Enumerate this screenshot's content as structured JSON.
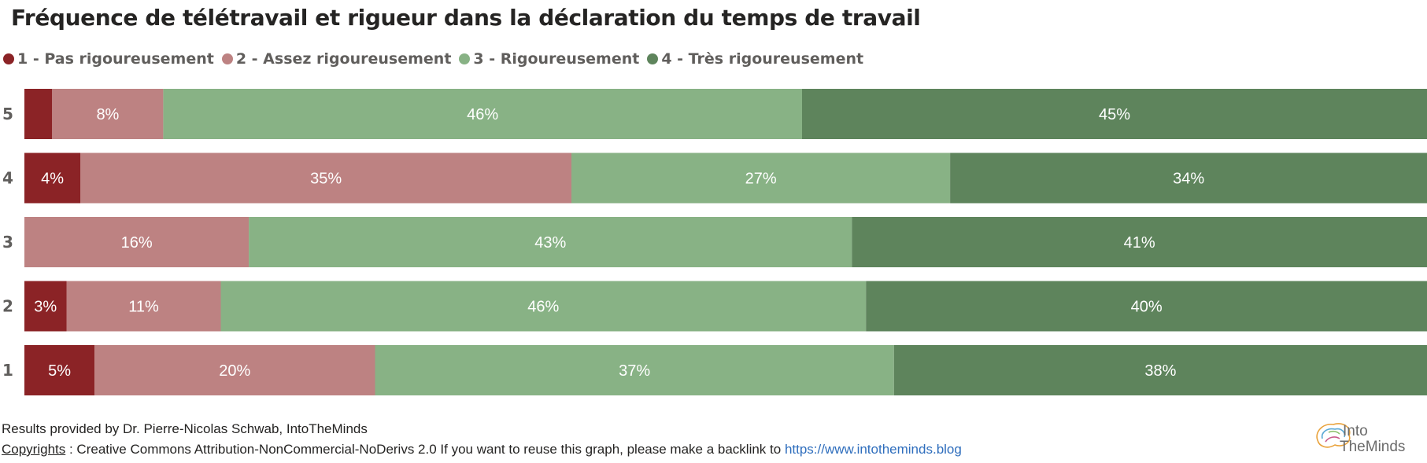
{
  "title": "Fréquence de télétravail et rigueur dans la déclaration du temps de travail",
  "legend": [
    {
      "label": "1 - Pas rigoureusement",
      "color": "#8b2326"
    },
    {
      "label": "2 - Assez rigoureusement",
      "color": "#bd8282"
    },
    {
      "label": "3 - Rigoureusement",
      "color": "#88b285"
    },
    {
      "label": "4 - Très rigoureusement",
      "color": "#5e845c"
    }
  ],
  "chart_data": {
    "type": "bar",
    "orientation": "horizontal",
    "stacked": true,
    "percent_stacked": true,
    "categories": [
      "5",
      "4",
      "3",
      "2",
      "1"
    ],
    "series": [
      {
        "name": "1 - Pas rigoureusement",
        "color": "#8b2326",
        "values": [
          2,
          4,
          0,
          3,
          5
        ]
      },
      {
        "name": "2 - Assez rigoureusement",
        "color": "#bd8282",
        "values": [
          8,
          35,
          16,
          11,
          20
        ]
      },
      {
        "name": "3 - Rigoureusement",
        "color": "#88b285",
        "values": [
          46,
          27,
          43,
          46,
          37
        ]
      },
      {
        "name": "4 - Très rigoureusement",
        "color": "#5e845c",
        "values": [
          45,
          34,
          41,
          40,
          38
        ]
      }
    ],
    "data_labels": [
      [
        "",
        "8%",
        "46%",
        "45%"
      ],
      [
        "4%",
        "35%",
        "27%",
        "34%"
      ],
      [
        "",
        "16%",
        "43%",
        "41%"
      ],
      [
        "3%",
        "11%",
        "46%",
        "40%"
      ],
      [
        "5%",
        "20%",
        "37%",
        "38%"
      ]
    ],
    "xlim": [
      0,
      100
    ],
    "legend_position": "top-left",
    "grid": false
  },
  "footer": {
    "line1": "Results provided by Dr. Pierre-Nicolas Schwab, IntoTheMinds",
    "copyright_word": "Copyrights",
    "copyright_text": " : Creative Commons Attribution-NonCommercial-NoDerivs 2.0 If you want to reuse this graph, please make a backlink to ",
    "link": "https://www.intotheminds.blog"
  },
  "logo": {
    "line1": "Into",
    "line2": "TheMinds"
  }
}
